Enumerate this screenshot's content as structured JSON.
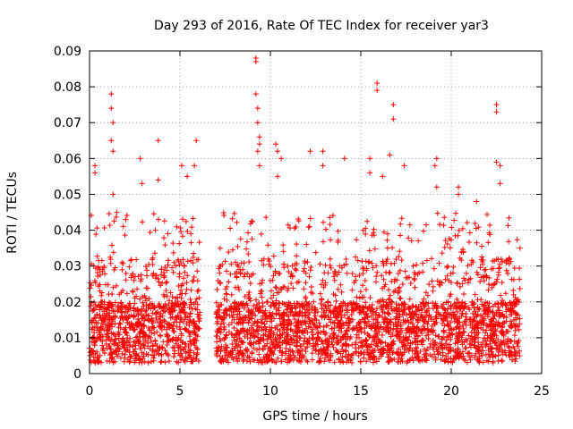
{
  "chart_data": {
    "type": "scatter",
    "title": "Day 293 of 2016, Rate Of TEC Index for receiver yar3",
    "xlabel": "GPS time / hours",
    "ylabel": "ROTI / TECUs",
    "xlim": [
      0,
      25
    ],
    "ylim": [
      0,
      0.09
    ],
    "x_ticks": [
      "0",
      "5",
      "10",
      "15",
      "20",
      "25"
    ],
    "y_ticks": [
      "0",
      "0.01",
      "0.02",
      "0.03",
      "0.04",
      "0.05",
      "0.06",
      "0.07",
      "0.08",
      "0.09"
    ],
    "grid": true,
    "marker": "plus",
    "color": "#ff0000",
    "data_gap_hours": [
      6.1,
      7.0
    ],
    "series": [
      {
        "name": "ROTI",
        "baseline_range": [
          0.003,
          0.02
        ],
        "notable_points": [
          {
            "x": 1.2,
            "y": 0.078
          },
          {
            "x": 1.2,
            "y": 0.074
          },
          {
            "x": 1.3,
            "y": 0.07
          },
          {
            "x": 1.2,
            "y": 0.065
          },
          {
            "x": 1.3,
            "y": 0.062
          },
          {
            "x": 1.3,
            "y": 0.05
          },
          {
            "x": 0.3,
            "y": 0.058
          },
          {
            "x": 0.3,
            "y": 0.056
          },
          {
            "x": 2.8,
            "y": 0.06
          },
          {
            "x": 2.9,
            "y": 0.053
          },
          {
            "x": 3.8,
            "y": 0.065
          },
          {
            "x": 3.8,
            "y": 0.054
          },
          {
            "x": 5.1,
            "y": 0.058
          },
          {
            "x": 5.4,
            "y": 0.055
          },
          {
            "x": 5.9,
            "y": 0.065
          },
          {
            "x": 5.8,
            "y": 0.058
          },
          {
            "x": 9.2,
            "y": 0.088
          },
          {
            "x": 9.2,
            "y": 0.087
          },
          {
            "x": 9.2,
            "y": 0.078
          },
          {
            "x": 9.3,
            "y": 0.074
          },
          {
            "x": 9.3,
            "y": 0.07
          },
          {
            "x": 9.4,
            "y": 0.066
          },
          {
            "x": 9.4,
            "y": 0.064
          },
          {
            "x": 9.3,
            "y": 0.062
          },
          {
            "x": 9.4,
            "y": 0.058
          },
          {
            "x": 10.3,
            "y": 0.064
          },
          {
            "x": 10.4,
            "y": 0.062
          },
          {
            "x": 10.6,
            "y": 0.06
          },
          {
            "x": 10.4,
            "y": 0.055
          },
          {
            "x": 12.2,
            "y": 0.062
          },
          {
            "x": 12.9,
            "y": 0.062
          },
          {
            "x": 12.9,
            "y": 0.058
          },
          {
            "x": 14.1,
            "y": 0.06
          },
          {
            "x": 15.5,
            "y": 0.06
          },
          {
            "x": 15.5,
            "y": 0.056
          },
          {
            "x": 15.9,
            "y": 0.081
          },
          {
            "x": 15.9,
            "y": 0.079
          },
          {
            "x": 16.8,
            "y": 0.075
          },
          {
            "x": 16.8,
            "y": 0.071
          },
          {
            "x": 16.6,
            "y": 0.061
          },
          {
            "x": 16.2,
            "y": 0.055
          },
          {
            "x": 17.4,
            "y": 0.058
          },
          {
            "x": 19.2,
            "y": 0.06
          },
          {
            "x": 19.1,
            "y": 0.058
          },
          {
            "x": 19.2,
            "y": 0.052
          },
          {
            "x": 20.4,
            "y": 0.052
          },
          {
            "x": 20.4,
            "y": 0.05
          },
          {
            "x": 21.4,
            "y": 0.048
          },
          {
            "x": 22.5,
            "y": 0.075
          },
          {
            "x": 22.5,
            "y": 0.073
          },
          {
            "x": 22.5,
            "y": 0.059
          },
          {
            "x": 22.7,
            "y": 0.058
          },
          {
            "x": 22.7,
            "y": 0.053
          },
          {
            "x": 23.8,
            "y": 0.035
          }
        ]
      }
    ]
  }
}
